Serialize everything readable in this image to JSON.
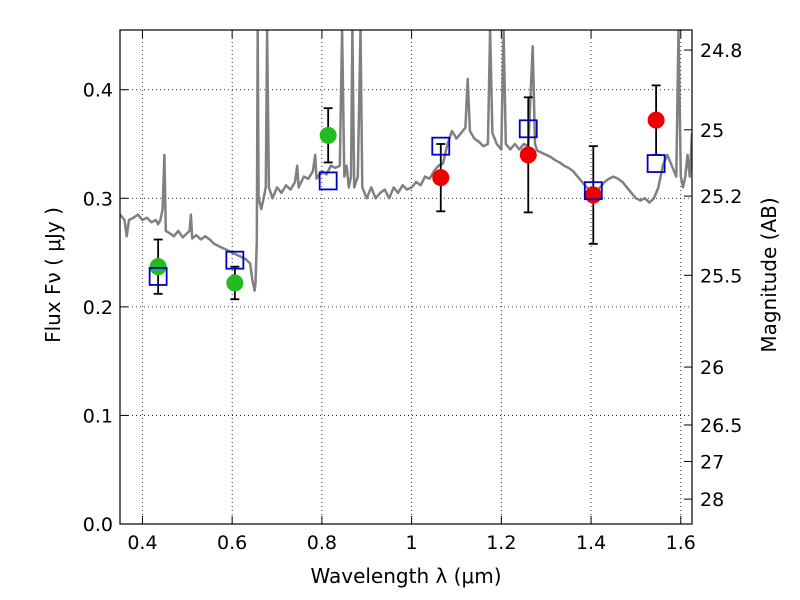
{
  "chart_data": {
    "type": "scatter",
    "xlabel": "Wavelength  λ (μm)",
    "ylabel": "Flux  Fν  ( μJy )",
    "ylabel2": "Magnitude (AB)",
    "xlim": [
      0.35,
      1.625
    ],
    "ylim": [
      0.0,
      0.455
    ],
    "grid": true,
    "x_ticks": [
      0.4,
      0.6,
      0.8,
      1.0,
      1.2,
      1.4,
      1.6
    ],
    "x_tick_labels": [
      "0.4",
      "0.6",
      "0.8",
      "1",
      "1.2",
      "1.4",
      "1.6"
    ],
    "y_ticks": [
      0.0,
      0.1,
      0.2,
      0.3,
      0.4
    ],
    "y_tick_labels": [
      "0.0",
      "0.1",
      "0.2",
      "0.3",
      "0.4"
    ],
    "mag_ticks": [
      24.8,
      25,
      25.2,
      25.5,
      26,
      26.5,
      27,
      28
    ],
    "mag_tick_labels": [
      "24.8",
      "25",
      "25.2",
      "25.5",
      "26",
      "26.5",
      "27",
      "28"
    ],
    "series": [
      {
        "marker": "circle",
        "color": "#22bb22",
        "points": [
          {
            "x": 0.435,
            "y": 0.237,
            "err": 0.025
          },
          {
            "x": 0.606,
            "y": 0.222,
            "err": 0.015
          },
          {
            "x": 0.814,
            "y": 0.358,
            "err": 0.025
          }
        ]
      },
      {
        "marker": "circle",
        "color": "#ee0000",
        "points": [
          {
            "x": 1.065,
            "y": 0.319,
            "err": 0.031
          },
          {
            "x": 1.26,
            "y": 0.34,
            "err": 0.053
          },
          {
            "x": 1.405,
            "y": 0.303,
            "err": 0.045
          },
          {
            "x": 1.545,
            "y": 0.372,
            "err": 0.032
          }
        ]
      },
      {
        "marker": "open-square",
        "color": "#0000cc",
        "points": [
          {
            "x": 0.435,
            "y": 0.228
          },
          {
            "x": 0.606,
            "y": 0.243
          },
          {
            "x": 0.814,
            "y": 0.316
          },
          {
            "x": 1.065,
            "y": 0.348
          },
          {
            "x": 1.26,
            "y": 0.364
          },
          {
            "x": 1.405,
            "y": 0.307
          },
          {
            "x": 1.545,
            "y": 0.332
          }
        ]
      }
    ],
    "model_spectrum": {
      "color": "#808080",
      "points": [
        [
          0.35,
          0.285
        ],
        [
          0.36,
          0.28
        ],
        [
          0.365,
          0.265
        ],
        [
          0.37,
          0.28
        ],
        [
          0.38,
          0.282
        ],
        [
          0.39,
          0.285
        ],
        [
          0.4,
          0.28
        ],
        [
          0.41,
          0.282
        ],
        [
          0.42,
          0.278
        ],
        [
          0.43,
          0.28
        ],
        [
          0.435,
          0.276
        ],
        [
          0.44,
          0.28
        ],
        [
          0.445,
          0.29
        ],
        [
          0.449,
          0.34
        ],
        [
          0.452,
          0.27
        ],
        [
          0.46,
          0.268
        ],
        [
          0.47,
          0.265
        ],
        [
          0.48,
          0.27
        ],
        [
          0.49,
          0.264
        ],
        [
          0.5,
          0.268
        ],
        [
          0.505,
          0.27
        ],
        [
          0.508,
          0.285
        ],
        [
          0.511,
          0.263
        ],
        [
          0.52,
          0.266
        ],
        [
          0.53,
          0.262
        ],
        [
          0.54,
          0.265
        ],
        [
          0.55,
          0.262
        ],
        [
          0.56,
          0.258
        ],
        [
          0.57,
          0.256
        ],
        [
          0.58,
          0.254
        ],
        [
          0.59,
          0.252
        ],
        [
          0.6,
          0.25
        ],
        [
          0.61,
          0.248
        ],
        [
          0.62,
          0.246
        ],
        [
          0.63,
          0.244
        ],
        [
          0.64,
          0.24
        ],
        [
          0.645,
          0.225
        ],
        [
          0.65,
          0.215
        ],
        [
          0.652,
          0.222
        ],
        [
          0.655,
          0.26
        ],
        [
          0.657,
          0.455
        ],
        [
          0.659,
          0.3
        ],
        [
          0.665,
          0.29
        ],
        [
          0.67,
          0.3
        ],
        [
          0.675,
          0.31
        ],
        [
          0.678,
          0.455
        ],
        [
          0.682,
          0.31
        ],
        [
          0.69,
          0.3
        ],
        [
          0.7,
          0.31
        ],
        [
          0.71,
          0.305
        ],
        [
          0.72,
          0.312
        ],
        [
          0.73,
          0.308
        ],
        [
          0.74,
          0.315
        ],
        [
          0.745,
          0.33
        ],
        [
          0.748,
          0.31
        ],
        [
          0.76,
          0.32
        ],
        [
          0.77,
          0.318
        ],
        [
          0.78,
          0.325
        ],
        [
          0.785,
          0.34
        ],
        [
          0.788,
          0.318
        ],
        [
          0.8,
          0.325
        ],
        [
          0.81,
          0.322
        ],
        [
          0.82,
          0.33
        ],
        [
          0.83,
          0.328
        ],
        [
          0.84,
          0.33
        ],
        [
          0.845,
          0.455
        ],
        [
          0.85,
          0.32
        ],
        [
          0.855,
          0.33
        ],
        [
          0.86,
          0.31
        ],
        [
          0.865,
          0.32
        ],
        [
          0.868,
          0.455
        ],
        [
          0.872,
          0.31
        ],
        [
          0.88,
          0.32
        ],
        [
          0.886,
          0.455
        ],
        [
          0.89,
          0.31
        ],
        [
          0.9,
          0.3
        ],
        [
          0.91,
          0.31
        ],
        [
          0.92,
          0.3
        ],
        [
          0.93,
          0.305
        ],
        [
          0.94,
          0.308
        ],
        [
          0.95,
          0.3
        ],
        [
          0.96,
          0.31
        ],
        [
          0.97,
          0.305
        ],
        [
          0.98,
          0.312
        ],
        [
          0.99,
          0.308
        ],
        [
          1.0,
          0.31
        ],
        [
          1.01,
          0.315
        ],
        [
          1.02,
          0.312
        ],
        [
          1.03,
          0.32
        ],
        [
          1.04,
          0.318
        ],
        [
          1.05,
          0.325
        ],
        [
          1.06,
          0.33
        ],
        [
          1.07,
          0.332
        ],
        [
          1.08,
          0.35
        ],
        [
          1.09,
          0.362
        ],
        [
          1.1,
          0.355
        ],
        [
          1.11,
          0.36
        ],
        [
          1.12,
          0.365
        ],
        [
          1.125,
          0.41
        ],
        [
          1.13,
          0.362
        ],
        [
          1.14,
          0.355
        ],
        [
          1.15,
          0.352
        ],
        [
          1.16,
          0.348
        ],
        [
          1.17,
          0.35
        ],
        [
          1.175,
          0.455
        ],
        [
          1.18,
          0.36
        ],
        [
          1.19,
          0.35
        ],
        [
          1.2,
          0.345
        ],
        [
          1.205,
          0.455
        ],
        [
          1.21,
          0.35
        ],
        [
          1.22,
          0.345
        ],
        [
          1.23,
          0.35
        ],
        [
          1.24,
          0.345
        ],
        [
          1.25,
          0.35
        ],
        [
          1.26,
          0.348
        ],
        [
          1.27,
          0.44
        ],
        [
          1.275,
          0.35
        ],
        [
          1.28,
          0.344
        ],
        [
          1.29,
          0.342
        ],
        [
          1.3,
          0.34
        ],
        [
          1.31,
          0.338
        ],
        [
          1.32,
          0.335
        ],
        [
          1.33,
          0.333
        ],
        [
          1.34,
          0.33
        ],
        [
          1.35,
          0.328
        ],
        [
          1.36,
          0.325
        ],
        [
          1.37,
          0.32
        ],
        [
          1.38,
          0.315
        ],
        [
          1.39,
          0.31
        ],
        [
          1.4,
          0.308
        ],
        [
          1.41,
          0.305
        ],
        [
          1.42,
          0.31
        ],
        [
          1.43,
          0.315
        ],
        [
          1.44,
          0.318
        ],
        [
          1.45,
          0.32
        ],
        [
          1.46,
          0.318
        ],
        [
          1.47,
          0.315
        ],
        [
          1.48,
          0.31
        ],
        [
          1.49,
          0.305
        ],
        [
          1.5,
          0.3
        ],
        [
          1.51,
          0.298
        ],
        [
          1.52,
          0.3
        ],
        [
          1.53,
          0.296
        ],
        [
          1.54,
          0.3
        ],
        [
          1.55,
          0.31
        ],
        [
          1.56,
          0.33
        ],
        [
          1.57,
          0.34
        ],
        [
          1.58,
          0.33
        ],
        [
          1.59,
          0.32
        ],
        [
          1.595,
          0.455
        ],
        [
          1.6,
          0.32
        ],
        [
          1.605,
          0.31
        ],
        [
          1.61,
          0.32
        ],
        [
          1.615,
          0.34
        ],
        [
          1.62,
          0.32
        ],
        [
          1.625,
          0.36
        ]
      ]
    }
  }
}
